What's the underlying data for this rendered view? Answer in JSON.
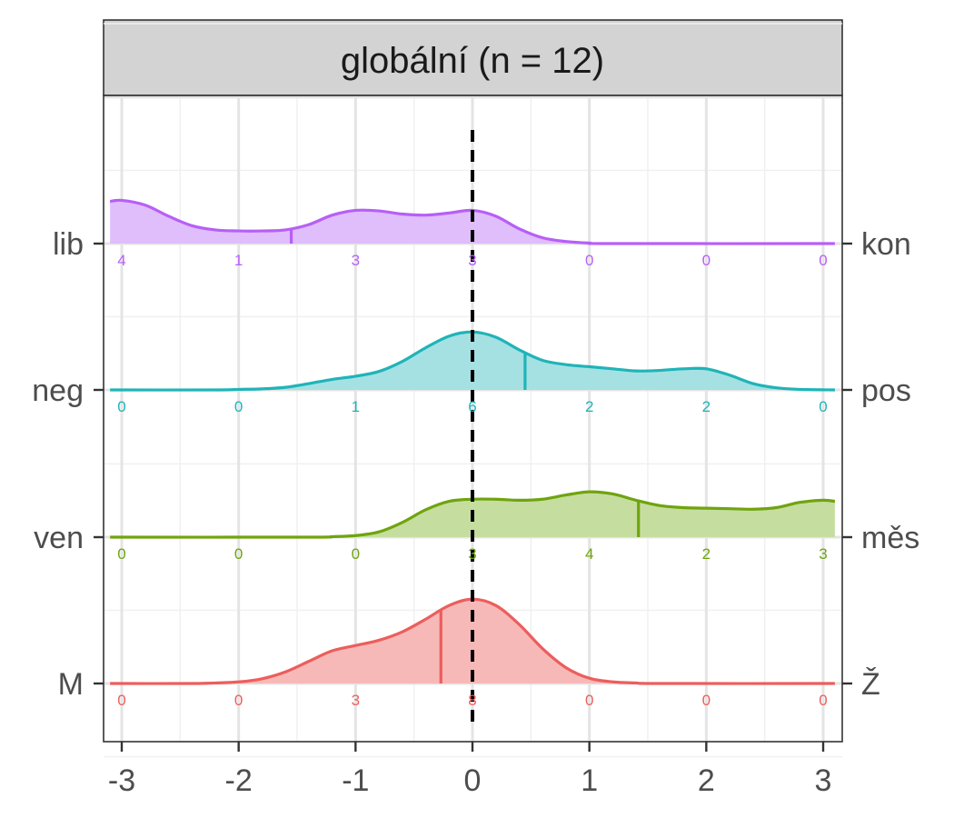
{
  "chart_data": {
    "type": "ridgeline-density",
    "title": "",
    "facet_label": "globální (n = 12)",
    "xlabel": "",
    "ylabel": "",
    "xlim": [
      -3.1,
      3.1
    ],
    "x_ticks": [
      -3,
      -2,
      -1,
      0,
      1,
      2,
      3
    ],
    "x_tick_labels": [
      "-3",
      "-2",
      "-1",
      "0",
      "1",
      "2",
      "3"
    ],
    "reference_line_x": 0,
    "count_positions": [
      -3,
      -2,
      -1,
      0,
      1,
      2,
      3
    ],
    "grid": true,
    "legend": "none",
    "series": [
      {
        "key": "lib",
        "left_label": "lib",
        "right_label": "kon",
        "color": "#B75FF6",
        "fill": "#E0BDFB",
        "mean": -1.55,
        "counts": [
          "4",
          "1",
          "3",
          "3",
          "0",
          "0",
          "0"
        ],
        "density": [
          [
            -3.1,
            0.8
          ],
          [
            -3.0,
            0.82
          ],
          [
            -2.8,
            0.73
          ],
          [
            -2.6,
            0.52
          ],
          [
            -2.4,
            0.34
          ],
          [
            -2.2,
            0.26
          ],
          [
            -2.0,
            0.24
          ],
          [
            -1.8,
            0.24
          ],
          [
            -1.6,
            0.26
          ],
          [
            -1.4,
            0.36
          ],
          [
            -1.2,
            0.54
          ],
          [
            -1.0,
            0.63
          ],
          [
            -0.8,
            0.62
          ],
          [
            -0.6,
            0.56
          ],
          [
            -0.4,
            0.54
          ],
          [
            -0.2,
            0.58
          ],
          [
            0.0,
            0.63
          ],
          [
            0.2,
            0.52
          ],
          [
            0.4,
            0.28
          ],
          [
            0.6,
            0.11
          ],
          [
            0.8,
            0.04
          ],
          [
            1.0,
            0.01
          ],
          [
            1.2,
            0.0
          ],
          [
            3.1,
            0.0
          ]
        ]
      },
      {
        "key": "neg",
        "left_label": "neg",
        "right_label": "pos",
        "color": "#1FB4B8",
        "fill": "#A5E1E3",
        "mean": 0.45,
        "counts": [
          "0",
          "0",
          "1",
          "6",
          "2",
          "2",
          "0"
        ],
        "density": [
          [
            -3.1,
            0.0
          ],
          [
            -2.2,
            0.0
          ],
          [
            -2.0,
            0.01
          ],
          [
            -1.8,
            0.02
          ],
          [
            -1.6,
            0.05
          ],
          [
            -1.4,
            0.12
          ],
          [
            -1.2,
            0.2
          ],
          [
            -1.0,
            0.26
          ],
          [
            -0.8,
            0.35
          ],
          [
            -0.6,
            0.54
          ],
          [
            -0.4,
            0.8
          ],
          [
            -0.2,
            1.02
          ],
          [
            0.0,
            1.1
          ],
          [
            0.2,
            1.0
          ],
          [
            0.4,
            0.76
          ],
          [
            0.6,
            0.56
          ],
          [
            0.8,
            0.48
          ],
          [
            1.0,
            0.44
          ],
          [
            1.2,
            0.4
          ],
          [
            1.4,
            0.36
          ],
          [
            1.6,
            0.37
          ],
          [
            1.8,
            0.4
          ],
          [
            2.0,
            0.4
          ],
          [
            2.2,
            0.28
          ],
          [
            2.4,
            0.12
          ],
          [
            2.6,
            0.04
          ],
          [
            2.8,
            0.01
          ],
          [
            3.1,
            0.0
          ]
        ]
      },
      {
        "key": "ven",
        "left_label": "ven",
        "right_label": "měs",
        "color": "#6FA40E",
        "fill": "#C6DDA0",
        "mean": 1.42,
        "counts": [
          "0",
          "0",
          "0",
          "3",
          "4",
          "2",
          "3"
        ],
        "density": [
          [
            -3.1,
            0.0
          ],
          [
            -1.4,
            0.0
          ],
          [
            -1.2,
            0.01
          ],
          [
            -1.0,
            0.03
          ],
          [
            -0.8,
            0.1
          ],
          [
            -0.6,
            0.28
          ],
          [
            -0.4,
            0.52
          ],
          [
            -0.2,
            0.68
          ],
          [
            0.0,
            0.72
          ],
          [
            0.2,
            0.72
          ],
          [
            0.4,
            0.7
          ],
          [
            0.6,
            0.72
          ],
          [
            0.8,
            0.8
          ],
          [
            1.0,
            0.86
          ],
          [
            1.2,
            0.82
          ],
          [
            1.4,
            0.7
          ],
          [
            1.6,
            0.6
          ],
          [
            1.8,
            0.56
          ],
          [
            2.0,
            0.55
          ],
          [
            2.2,
            0.54
          ],
          [
            2.4,
            0.53
          ],
          [
            2.6,
            0.56
          ],
          [
            2.8,
            0.66
          ],
          [
            3.0,
            0.7
          ],
          [
            3.1,
            0.68
          ]
        ]
      },
      {
        "key": "M",
        "left_label": "M",
        "right_label": "Ž",
        "color": "#EC5E5C",
        "fill": "#F7B9B8",
        "mean": -0.27,
        "counts": [
          "0",
          "0",
          "3",
          "8",
          "0",
          "0",
          "0"
        ],
        "density": [
          [
            -3.1,
            0.0
          ],
          [
            -2.4,
            0.0
          ],
          [
            -2.2,
            0.01
          ],
          [
            -2.0,
            0.03
          ],
          [
            -1.8,
            0.09
          ],
          [
            -1.6,
            0.22
          ],
          [
            -1.4,
            0.42
          ],
          [
            -1.2,
            0.62
          ],
          [
            -1.0,
            0.72
          ],
          [
            -0.8,
            0.82
          ],
          [
            -0.6,
            0.98
          ],
          [
            -0.4,
            1.22
          ],
          [
            -0.2,
            1.48
          ],
          [
            0.0,
            1.6
          ],
          [
            0.2,
            1.48
          ],
          [
            0.4,
            1.12
          ],
          [
            0.6,
            0.66
          ],
          [
            0.8,
            0.3
          ],
          [
            1.0,
            0.1
          ],
          [
            1.2,
            0.03
          ],
          [
            1.4,
            0.01
          ],
          [
            1.6,
            0.0
          ],
          [
            3.1,
            0.0
          ]
        ]
      }
    ]
  }
}
